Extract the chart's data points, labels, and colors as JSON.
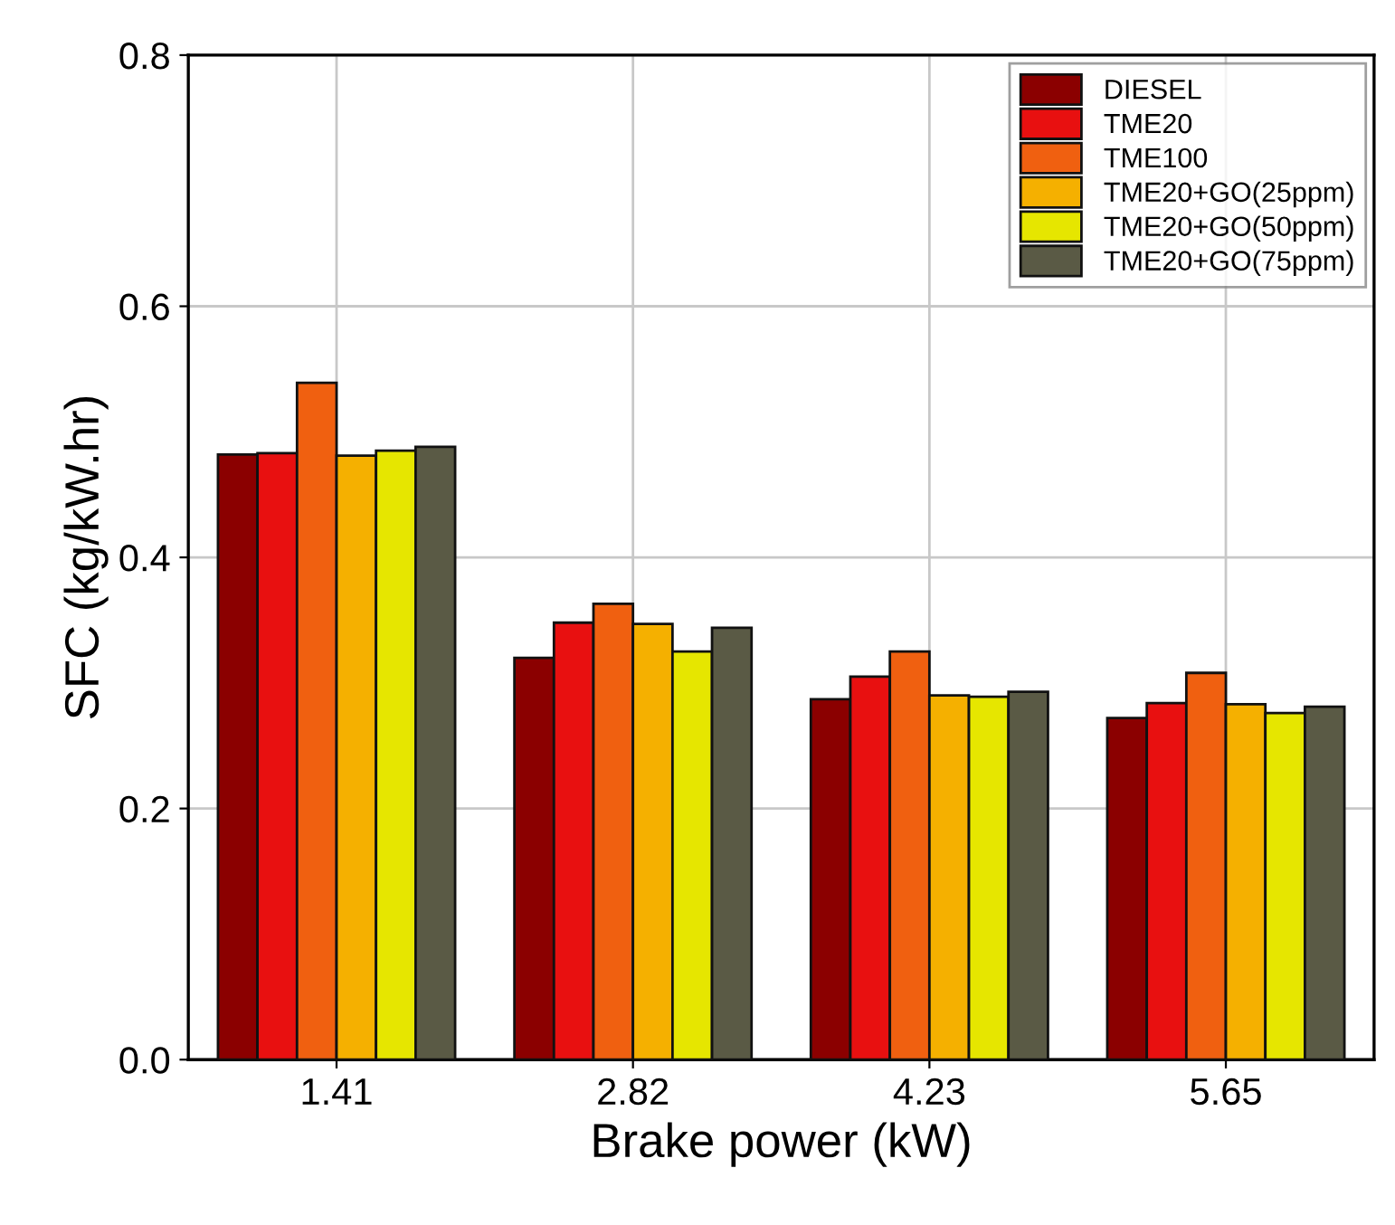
{
  "chart_data": {
    "type": "bar",
    "xlabel": "Brake power (kW)",
    "ylabel": "SFC (kg/kW.hr)",
    "categories": [
      "1.41",
      "2.82",
      "4.23",
      "5.65"
    ],
    "series": [
      {
        "name": "DIESEL",
        "color": "#8b0000",
        "values": [
          0.482,
          0.32,
          0.287,
          0.272
        ]
      },
      {
        "name": "TME20",
        "color": "#e81010",
        "values": [
          0.483,
          0.348,
          0.305,
          0.284
        ]
      },
      {
        "name": "TME100",
        "color": "#f06010",
        "values": [
          0.539,
          0.363,
          0.325,
          0.308
        ]
      },
      {
        "name": "TME20+GO(25ppm)",
        "color": "#f5b000",
        "values": [
          0.481,
          0.347,
          0.29,
          0.283
        ]
      },
      {
        "name": "TME20+GO(50ppm)",
        "color": "#e6e600",
        "values": [
          0.485,
          0.325,
          0.289,
          0.276
        ]
      },
      {
        "name": "TME20+GO(75ppm)",
        "color": "#5a5a45",
        "values": [
          0.488,
          0.344,
          0.293,
          0.281
        ]
      }
    ],
    "ylim": [
      0,
      0.8
    ],
    "yticks": [
      {
        "value": 0,
        "label": "0.0"
      },
      0.2,
      0.4,
      0.6,
      0.8
    ],
    "grid": true,
    "legend": "top right"
  }
}
